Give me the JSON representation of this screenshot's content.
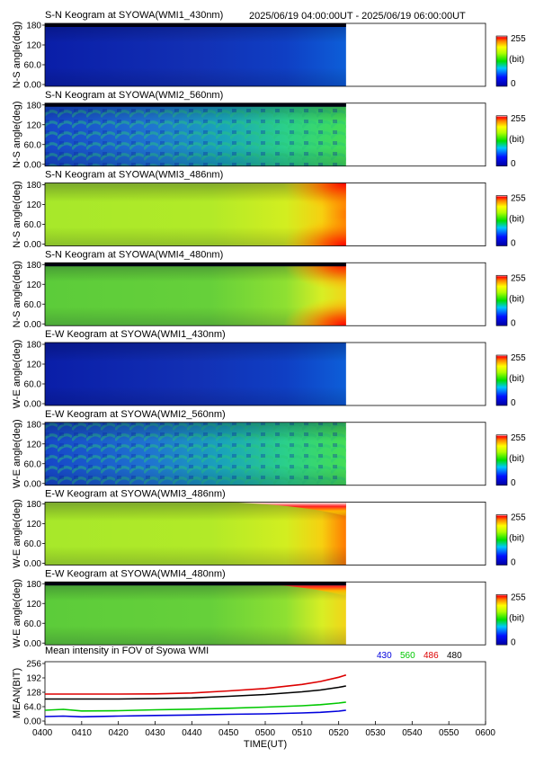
{
  "header": {
    "time_range": "2025/06/19 04:00:00UT - 2025/06/19 06:00:00UT"
  },
  "colors": {
    "l430": "#0000dd",
    "l560": "#00c800",
    "l486": "#dd0000",
    "l480": "#000000"
  },
  "colorbar": {
    "max_label": "255",
    "unit_label": "(bit)",
    "min_label": "0"
  },
  "data_end": "0522",
  "chart_data": [
    {
      "type": "heatmap",
      "title": "S-N Keogram at SYOWA(WMI1_430nm)",
      "ylabel": "N-S angle(deg)",
      "yticks": [
        "180",
        "120",
        "60.0",
        "0.00"
      ],
      "ylim": [
        0,
        180
      ],
      "palette": "low",
      "darkTop": true,
      "rainbowTop": false,
      "redEdges": false
    },
    {
      "type": "heatmap",
      "title": "S-N Keogram at SYOWA(WMI2_560nm)",
      "ylabel": "N-S angle(deg)",
      "yticks": [
        "180",
        "120",
        "60.0",
        "0.00"
      ],
      "ylim": [
        0,
        180
      ],
      "palette": "arcs",
      "darkTop": true,
      "rainbowTop": false,
      "redEdges": false
    },
    {
      "type": "heatmap",
      "title": "S-N Keogram at SYOWA(WMI3_486nm)",
      "ylabel": "N-S angle(deg)",
      "yticks": [
        "180",
        "120",
        "60.0",
        "0.00"
      ],
      "ylim": [
        0,
        180
      ],
      "palette": "high",
      "darkTop": false,
      "rainbowTop": false,
      "redEdges": true
    },
    {
      "type": "heatmap",
      "title": "S-N Keogram at SYOWA(WMI4_480nm)",
      "ylabel": "N-S angle(deg)",
      "yticks": [
        "180",
        "120",
        "60.0",
        "0.00"
      ],
      "ylim": [
        0,
        180
      ],
      "palette": "mid",
      "darkTop": true,
      "rainbowTop": false,
      "redEdges": true
    },
    {
      "type": "heatmap",
      "title": "E-W Keogram at SYOWA(WMI1_430nm)",
      "ylabel": "W-E angle(deg)",
      "yticks": [
        "180",
        "120",
        "60.0",
        "0.00"
      ],
      "ylim": [
        0,
        180
      ],
      "palette": "low",
      "darkTop": false,
      "rainbowTop": false,
      "redEdges": false
    },
    {
      "type": "heatmap",
      "title": "E-W Keogram at SYOWA(WMI2_560nm)",
      "ylabel": "W-E angle(deg)",
      "yticks": [
        "180",
        "120",
        "60.0",
        "0.00"
      ],
      "ylim": [
        0,
        180
      ],
      "palette": "arcs",
      "darkTop": false,
      "rainbowTop": false,
      "redEdges": false
    },
    {
      "type": "heatmap",
      "title": "E-W Keogram at SYOWA(WMI3_486nm)",
      "ylabel": "W-E angle(deg)",
      "yticks": [
        "180",
        "120",
        "60.0",
        "0.00"
      ],
      "ylim": [
        0,
        180
      ],
      "palette": "high",
      "darkTop": false,
      "rainbowTop": true,
      "redEdges": false
    },
    {
      "type": "heatmap",
      "title": "E-W Keogram at SYOWA(WMI4_480nm)",
      "ylabel": "W-E angle(deg)",
      "yticks": [
        "180",
        "120",
        "60.0",
        "0.00"
      ],
      "ylim": [
        0,
        180
      ],
      "palette": "mid",
      "darkTop": true,
      "rainbowTop": true,
      "redEdges": false
    },
    {
      "type": "line",
      "title": "Mean intensity in FOV of Syowa WMI",
      "xlabel": "TIME(UT)",
      "ylabel": "MEAN(BIT)",
      "yticks": [
        "256",
        "192",
        "128",
        "64.0",
        "0.00"
      ],
      "ylim": [
        0,
        256
      ],
      "xticks": [
        "0400",
        "0410",
        "0420",
        "0430",
        "0440",
        "0450",
        "0500",
        "0510",
        "0520",
        "0530",
        "0540",
        "0550",
        "0600"
      ],
      "xlim_minutes": [
        0,
        120
      ],
      "grid": false,
      "legend_position": "top-right",
      "x_minutes": [
        0,
        5,
        10,
        20,
        30,
        40,
        50,
        60,
        70,
        75,
        80,
        82
      ],
      "series": [
        {
          "name": "430",
          "color": "#0000dd",
          "values": [
            20,
            22,
            19,
            22,
            25,
            27,
            30,
            32,
            36,
            39,
            44,
            48
          ]
        },
        {
          "name": "560",
          "color": "#00c800",
          "values": [
            48,
            52,
            45,
            46,
            50,
            53,
            57,
            62,
            68,
            73,
            80,
            84
          ]
        },
        {
          "name": "486",
          "color": "#dd0000",
          "values": [
            120,
            120,
            120,
            120,
            121,
            125,
            134,
            145,
            163,
            176,
            195,
            205
          ]
        },
        {
          "name": "480",
          "color": "#000000",
          "values": [
            98,
            98,
            98,
            98,
            100,
            103,
            110,
            118,
            130,
            138,
            150,
            156
          ]
        }
      ]
    }
  ]
}
